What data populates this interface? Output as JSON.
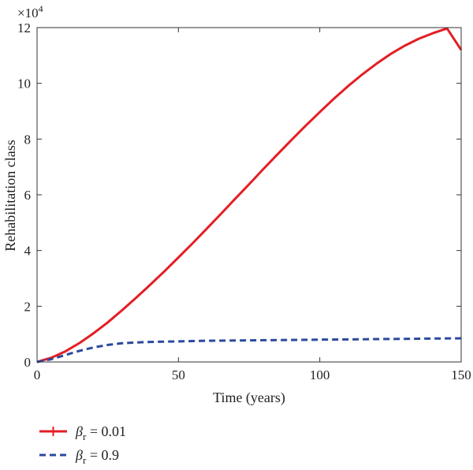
{
  "chart_data": {
    "type": "line",
    "xlabel": "Time (years)",
    "ylabel": "Rehabilitation class",
    "y_multiplier_label": "×10",
    "y_multiplier_exponent": "4",
    "xlim": [
      0,
      150
    ],
    "ylim": [
      0,
      12
    ],
    "x_ticks": [
      0,
      50,
      100,
      150
    ],
    "y_ticks": [
      0,
      2,
      4,
      6,
      8,
      10,
      12
    ],
    "grid": false,
    "legend_position": "below-left",
    "series": [
      {
        "name": "= 0.01",
        "symbol": "β",
        "subscript": "r",
        "color": "#e31e24",
        "style": "solid",
        "x": [
          0,
          5,
          10,
          15,
          20,
          25,
          30,
          35,
          40,
          45,
          50,
          55,
          60,
          65,
          70,
          75,
          80,
          85,
          90,
          95,
          100,
          105,
          110,
          115,
          120,
          125,
          130,
          135,
          140,
          145,
          150
        ],
        "y": [
          0,
          0.15,
          0.38,
          0.68,
          1.03,
          1.42,
          1.85,
          2.3,
          2.77,
          3.25,
          3.75,
          4.26,
          4.78,
          5.31,
          5.85,
          6.38,
          6.92,
          7.45,
          7.97,
          8.48,
          8.97,
          9.45,
          9.9,
          10.32,
          10.7,
          11.05,
          11.35,
          11.6,
          11.8,
          11.97,
          11.2
        ]
      },
      {
        "name": "= 0.9",
        "symbol": "β",
        "subscript": "r",
        "color": "#2b4a9e",
        "style": "dashed",
        "x": [
          0,
          5,
          10,
          15,
          20,
          25,
          30,
          35,
          40,
          45,
          50,
          60,
          70,
          80,
          90,
          100,
          110,
          120,
          130,
          140,
          150
        ],
        "y": [
          0,
          0.1,
          0.25,
          0.4,
          0.52,
          0.61,
          0.67,
          0.7,
          0.72,
          0.73,
          0.74,
          0.76,
          0.77,
          0.78,
          0.79,
          0.8,
          0.81,
          0.82,
          0.83,
          0.84,
          0.85
        ]
      }
    ]
  }
}
